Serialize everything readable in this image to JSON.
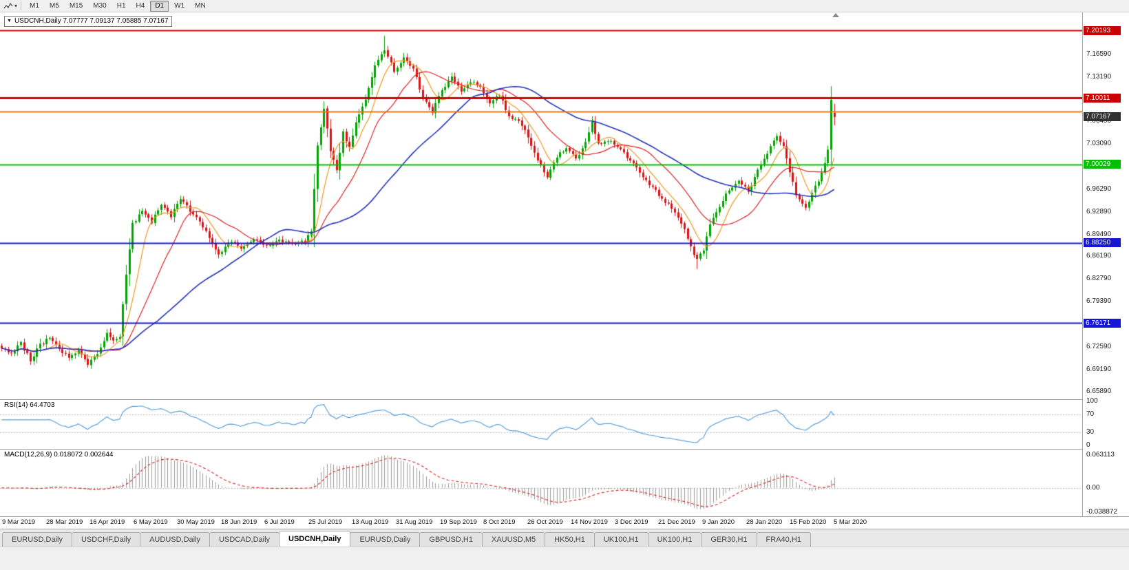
{
  "toolbar": {
    "timeframes": [
      "M1",
      "M5",
      "M15",
      "M30",
      "H1",
      "H4",
      "D1",
      "W1",
      "MN"
    ],
    "active_timeframe": "D1",
    "chart_icon": "chart-pointer-icon"
  },
  "chart": {
    "header": "USDCNH,Daily  7.07777 7.09137 7.05885 7.07167",
    "gray_axis_labels": [
      "7.16590",
      "7.13190",
      "7.06490",
      "7.03090",
      "6.96290",
      "6.92890",
      "6.89490",
      "6.86190",
      "6.82790",
      "6.79390",
      "6.72590",
      "6.69190",
      "6.65890"
    ],
    "levels": [
      {
        "price": 7.20193,
        "label": "7.20193",
        "color": "#cc0000",
        "width": 2,
        "tag": true
      },
      {
        "price": 7.10011,
        "label": "7.10011",
        "color": "#cc0000",
        "width": 3,
        "tag": true
      },
      {
        "price": 7.08,
        "label": "",
        "color": "#e07818",
        "width": 2,
        "tag": false
      },
      {
        "price": 7.00029,
        "label": "7.00029",
        "color": "#00c000",
        "width": 2,
        "tag": true
      },
      {
        "price": 6.8825,
        "label": "6.88250",
        "color": "#1616d6",
        "width": 2,
        "tag": true
      },
      {
        "price": 6.76171,
        "label": "6.76171",
        "color": "#1616d6",
        "width": 2,
        "tag": true
      }
    ],
    "current_price_tag": {
      "label": "7.07167",
      "bg": "#303030"
    },
    "date_labels": [
      "9 Mar 2019",
      "28 Mar 2019",
      "16 Apr 2019",
      "6 May 2019",
      "30 May 2019",
      "18 Jun 2019",
      "6 Jul 2019",
      "25 Jul 2019",
      "13 Aug 2019",
      "31 Aug 2019",
      "19 Sep 2019",
      "8 Oct 2019",
      "26 Oct 2019",
      "14 Nov 2019",
      "3 Dec 2019",
      "21 Dec 2019",
      "9 Jan 2020",
      "28 Jan 2020",
      "15 Feb 2020",
      "5 Mar 2020"
    ]
  },
  "rsi": {
    "label": "RSI(14) 64.4703",
    "axis_labels": [
      {
        "value": 100,
        "label": "100"
      },
      {
        "value": 70,
        "label": "70"
      },
      {
        "value": 30,
        "label": "30"
      },
      {
        "value": 0,
        "label": "0"
      }
    ],
    "dotted_levels": [
      70,
      30
    ]
  },
  "macd": {
    "label": "MACD(12,26,9) 0.018072 0.002644",
    "axis_top": "0.063113",
    "axis_zero": "0.00",
    "axis_bottom": "-0.038872"
  },
  "tabs": {
    "items": [
      "EURUSD,Daily",
      "USDCHF,Daily",
      "AUDUSD,Daily",
      "USDCAD,Daily",
      "USDCNH,Daily",
      "EURUSD,Daily",
      "GBPUSD,H1",
      "XAUUSD,M5",
      "HK50,H1",
      "UK100,H1",
      "UK100,H1",
      "GER30,H1",
      "FRA40,H1"
    ],
    "active_index": 4
  },
  "chart_data": {
    "type": "candlestick",
    "symbol": "USDCNH",
    "timeframe": "Daily",
    "num_candles": 262,
    "ylim": [
      6.647,
      7.229
    ],
    "data_width_frac": 0.772,
    "current_bar": {
      "open": 7.07777,
      "high": 7.09137,
      "low": 7.05885,
      "close": 7.07167
    },
    "close_anchors": [
      [
        0,
        6.726
      ],
      [
        3,
        6.716
      ],
      [
        6,
        6.731
      ],
      [
        9,
        6.706
      ],
      [
        12,
        6.729
      ],
      [
        15,
        6.739
      ],
      [
        18,
        6.721
      ],
      [
        21,
        6.709
      ],
      [
        24,
        6.723
      ],
      [
        27,
        6.7
      ],
      [
        30,
        6.713
      ],
      [
        33,
        6.746
      ],
      [
        35,
        6.733
      ],
      [
        37,
        6.741
      ],
      [
        39,
        6.835
      ],
      [
        41,
        6.91
      ],
      [
        44,
        6.931
      ],
      [
        47,
        6.913
      ],
      [
        50,
        6.941
      ],
      [
        53,
        6.923
      ],
      [
        56,
        6.949
      ],
      [
        59,
        6.931
      ],
      [
        62,
        6.916
      ],
      [
        65,
        6.889
      ],
      [
        68,
        6.863
      ],
      [
        71,
        6.885
      ],
      [
        75,
        6.875
      ],
      [
        79,
        6.887
      ],
      [
        83,
        6.878
      ],
      [
        87,
        6.885
      ],
      [
        91,
        6.881
      ],
      [
        95,
        6.885
      ],
      [
        97,
        6.902
      ],
      [
        99,
        7.028
      ],
      [
        101,
        7.083
      ],
      [
        103,
        7.022
      ],
      [
        105,
        6.99
      ],
      [
        107,
        7.05
      ],
      [
        109,
        7.024
      ],
      [
        111,
        7.064
      ],
      [
        114,
        7.1
      ],
      [
        117,
        7.15
      ],
      [
        120,
        7.173
      ],
      [
        123,
        7.142
      ],
      [
        126,
        7.16
      ],
      [
        129,
        7.144
      ],
      [
        132,
        7.1
      ],
      [
        135,
        7.08
      ],
      [
        138,
        7.114
      ],
      [
        141,
        7.13
      ],
      [
        144,
        7.11
      ],
      [
        147,
        7.124
      ],
      [
        150,
        7.118
      ],
      [
        153,
        7.092
      ],
      [
        156,
        7.106
      ],
      [
        159,
        7.072
      ],
      [
        162,
        7.066
      ],
      [
        165,
        7.042
      ],
      [
        168,
        7.006
      ],
      [
        171,
        6.98
      ],
      [
        174,
        7.012
      ],
      [
        177,
        7.026
      ],
      [
        180,
        7.008
      ],
      [
        183,
        7.032
      ],
      [
        185,
        7.062
      ],
      [
        187,
        7.032
      ],
      [
        190,
        7.036
      ],
      [
        193,
        7.028
      ],
      [
        196,
        7.012
      ],
      [
        199,
        6.996
      ],
      [
        202,
        6.976
      ],
      [
        205,
        6.96
      ],
      [
        208,
        6.944
      ],
      [
        211,
        6.93
      ],
      [
        214,
        6.902
      ],
      [
        216,
        6.876
      ],
      [
        218,
        6.856
      ],
      [
        220,
        6.872
      ],
      [
        222,
        6.912
      ],
      [
        225,
        6.938
      ],
      [
        228,
        6.962
      ],
      [
        231,
        6.978
      ],
      [
        234,
        6.958
      ],
      [
        237,
        6.992
      ],
      [
        240,
        7.018
      ],
      [
        243,
        7.042
      ],
      [
        245,
        7.028
      ],
      [
        247,
        6.99
      ],
      [
        249,
        6.956
      ],
      [
        252,
        6.934
      ],
      [
        254,
        6.958
      ],
      [
        256,
        6.976
      ],
      [
        258,
        7.0
      ],
      [
        259,
        7.02
      ],
      [
        260,
        7.095
      ],
      [
        261,
        7.072
      ]
    ],
    "up_color": "#00a400",
    "down_color": "#dd1111",
    "moving_averages": [
      {
        "period": 8,
        "color": "#ee9922",
        "name": "fast-ma-orange"
      },
      {
        "period": 20,
        "color": "#dd2222",
        "name": "mid-ma-red"
      },
      {
        "period": 50,
        "color": "#2233bb",
        "name": "slow-ma-blue"
      }
    ],
    "rsi": {
      "period": 14,
      "current": 64.4703,
      "color": "#5aa0dc"
    },
    "macd": {
      "fast": 12,
      "slow": 26,
      "signal": 9,
      "current": 0.018072,
      "signal_current": 0.002644,
      "hist_color": "#9a9a9a",
      "signal_color": "#dd2222"
    }
  }
}
